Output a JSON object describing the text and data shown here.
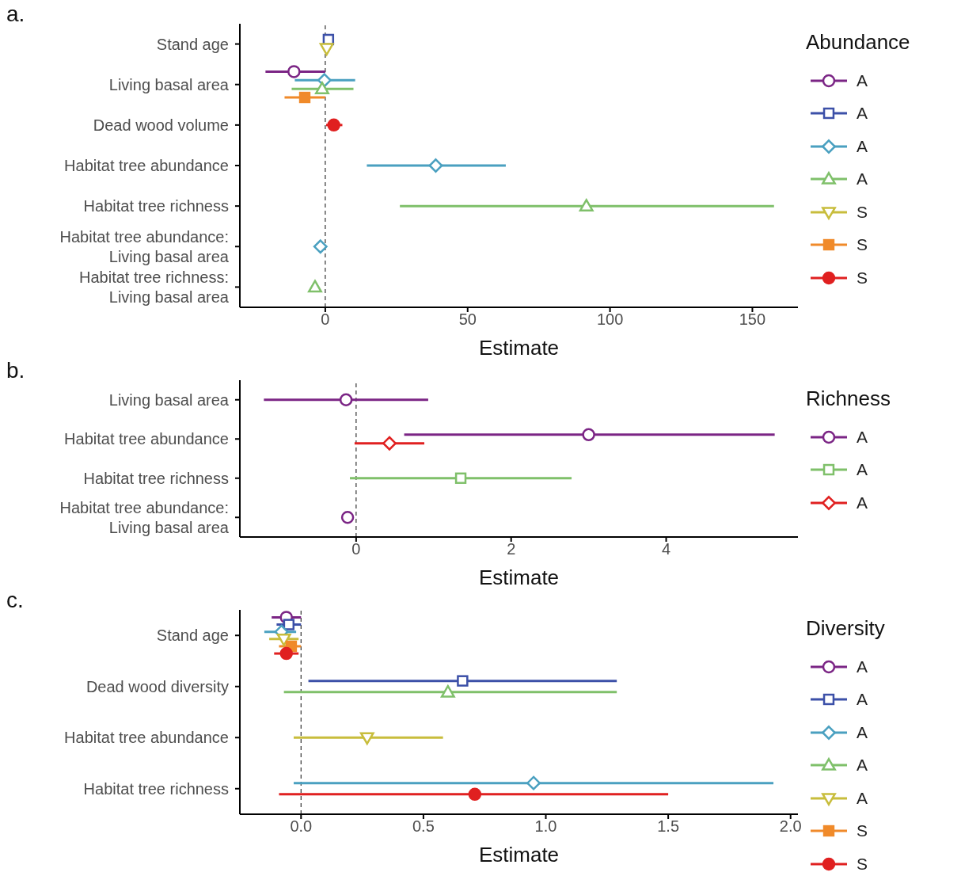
{
  "chart_data": [
    {
      "type": "scatter",
      "title": "a.",
      "orientation": "horizontal",
      "categories": [
        "Stand age",
        "Living basal area",
        "Dead wood volume",
        "Habitat tree abundance",
        "Habitat tree richness",
        "Habitat tree abundance:\nLiving basal area",
        "Habitat tree richness:\nLiving basal area"
      ],
      "xlabel": "Estimate",
      "legend_title": "Abundance",
      "legend": "right",
      "xlim": [
        -30,
        166
      ],
      "xticks": [
        0,
        50,
        100,
        150
      ],
      "ref_lines": [
        {
          "axis": "x",
          "value": 0,
          "line_style": "dashed",
          "color": "#333333"
        }
      ],
      "series": [
        {
          "name": "A",
          "color": "#7b2585",
          "marker": "circle",
          "values": [
            null,
            -11,
            null,
            null,
            null,
            null,
            null
          ],
          "errors": [
            null,
            [
              -21,
              0
            ],
            null,
            null,
            null,
            null,
            null
          ]
        },
        {
          "name": "A",
          "color": "#3c50a8",
          "marker": "square",
          "values": [
            1.1,
            null,
            null,
            null,
            null,
            null,
            null
          ],
          "errors": [
            null,
            null,
            null,
            null,
            null,
            null,
            null
          ]
        },
        {
          "name": "A",
          "color": "#4aa0c0",
          "marker": "diamond",
          "values": [
            null,
            -0.3,
            null,
            38.8,
            null,
            -1.7,
            null
          ],
          "errors": [
            null,
            [
              -10.7,
              10.5
            ],
            null,
            [
              14.6,
              63.4
            ],
            null,
            null,
            null
          ]
        },
        {
          "name": "A",
          "color": "#7fc06a",
          "marker": "triangle",
          "values": [
            null,
            -1.1,
            null,
            null,
            91.7,
            null,
            -3.6
          ],
          "errors": [
            null,
            [
              -11.8,
              9.9
            ],
            null,
            null,
            [
              26.2,
              157.6
            ],
            null,
            null
          ]
        },
        {
          "name": "S",
          "color": "#c8bd3c",
          "marker": "triangle-down",
          "values": [
            0.5,
            null,
            null,
            null,
            null,
            null,
            null
          ],
          "errors": [
            null,
            null,
            null,
            null,
            null,
            null,
            null
          ]
        },
        {
          "name": "S",
          "color": "#f08a2a",
          "marker": "square-filled",
          "values": [
            null,
            -7.2,
            null,
            null,
            null,
            null,
            null
          ],
          "errors": [
            null,
            [
              -14.3,
              0
            ],
            null,
            null,
            null,
            null,
            null
          ]
        },
        {
          "name": "S",
          "color": "#e02020",
          "marker": "circle-filled",
          "values": [
            null,
            null,
            3,
            null,
            null,
            null,
            null
          ],
          "errors": [
            null,
            null,
            [
              0.3,
              6
            ],
            null,
            null,
            null,
            null
          ]
        }
      ]
    },
    {
      "type": "scatter",
      "title": "b.",
      "orientation": "horizontal",
      "categories": [
        "Living basal area",
        "Habitat tree abundance",
        "Habitat tree richness",
        "Habitat tree abundance:\nLiving basal area"
      ],
      "xlabel": "Estimate",
      "legend_title": "Richness",
      "legend": "right",
      "xlim": [
        -1.5,
        5.7
      ],
      "xticks": [
        0,
        2,
        4
      ],
      "ref_lines": [
        {
          "axis": "x",
          "value": 0,
          "line_style": "dashed",
          "color": "#333333"
        }
      ],
      "series": [
        {
          "name": "A",
          "color": "#7b2585",
          "marker": "circle",
          "values": [
            -0.13,
            3.0,
            null,
            -0.11
          ],
          "errors": [
            [
              -1.19,
              0.93
            ],
            [
              0.62,
              5.4
            ],
            null,
            null
          ]
        },
        {
          "name": "A",
          "color": "#7fc06a",
          "marker": "square",
          "values": [
            null,
            null,
            1.35,
            null
          ],
          "errors": [
            null,
            null,
            [
              -0.08,
              2.78
            ],
            null
          ]
        },
        {
          "name": "A",
          "color": "#e02020",
          "marker": "diamond",
          "values": [
            null,
            0.43,
            null,
            null
          ],
          "errors": [
            null,
            [
              -0.02,
              0.88
            ],
            null,
            null
          ]
        }
      ]
    },
    {
      "type": "scatter",
      "title": "c.",
      "orientation": "horizontal",
      "categories": [
        "Stand age",
        "Dead wood diversity",
        "Habitat tree abundance",
        "Habitat tree richness"
      ],
      "xlabel": "Estimate",
      "legend_title": "Diversity",
      "legend": "right",
      "xlim": [
        -0.25,
        2.03
      ],
      "xticks": [
        {
          "value": 0,
          "label": "0.0"
        },
        {
          "value": 0.5,
          "label": "0.5"
        },
        {
          "value": 1,
          "label": "1.0"
        },
        {
          "value": 1.5,
          "label": "1.5"
        },
        {
          "value": 2,
          "label": "2.0"
        }
      ],
      "ref_lines": [
        {
          "axis": "x",
          "value": 0,
          "line_style": "dashed",
          "color": "#333333"
        }
      ],
      "series": [
        {
          "name": "A",
          "color": "#7b2585",
          "marker": "circle",
          "values": [
            -0.06,
            null,
            null,
            null
          ],
          "errors": [
            [
              -0.12,
              0
            ],
            null,
            null,
            null
          ]
        },
        {
          "name": "A",
          "color": "#3c50a8",
          "marker": "square",
          "values": [
            -0.05,
            0.66,
            null,
            null
          ],
          "errors": [
            [
              -0.1,
              0
            ],
            [
              0.03,
              1.29
            ],
            null,
            null
          ]
        },
        {
          "name": "A",
          "color": "#4aa0c0",
          "marker": "diamond",
          "values": [
            -0.08,
            null,
            null,
            0.95
          ],
          "errors": [
            [
              -0.15,
              -0.02
            ],
            null,
            null,
            [
              -0.03,
              1.93
            ]
          ]
        },
        {
          "name": "A",
          "color": "#7fc06a",
          "marker": "triangle",
          "values": [
            null,
            0.6,
            null,
            null
          ],
          "errors": [
            null,
            [
              -0.07,
              1.29
            ],
            null,
            null
          ]
        },
        {
          "name": "A",
          "color": "#c8bd3c",
          "marker": "triangle-down",
          "values": [
            -0.07,
            null,
            0.27,
            null
          ],
          "errors": [
            [
              -0.13,
              -0.01
            ],
            null,
            [
              -0.03,
              0.58
            ],
            null
          ]
        },
        {
          "name": "S",
          "color": "#f08a2a",
          "marker": "square-filled",
          "values": [
            -0.04,
            null,
            null,
            null
          ],
          "errors": [
            [
              -0.09,
              0
            ],
            null,
            null,
            null
          ]
        },
        {
          "name": "S",
          "color": "#e02020",
          "marker": "circle-filled",
          "values": [
            -0.06,
            null,
            null,
            0.71
          ],
          "errors": [
            [
              -0.11,
              -0.01
            ],
            null,
            null,
            [
              -0.09,
              1.5
            ]
          ]
        }
      ]
    }
  ]
}
